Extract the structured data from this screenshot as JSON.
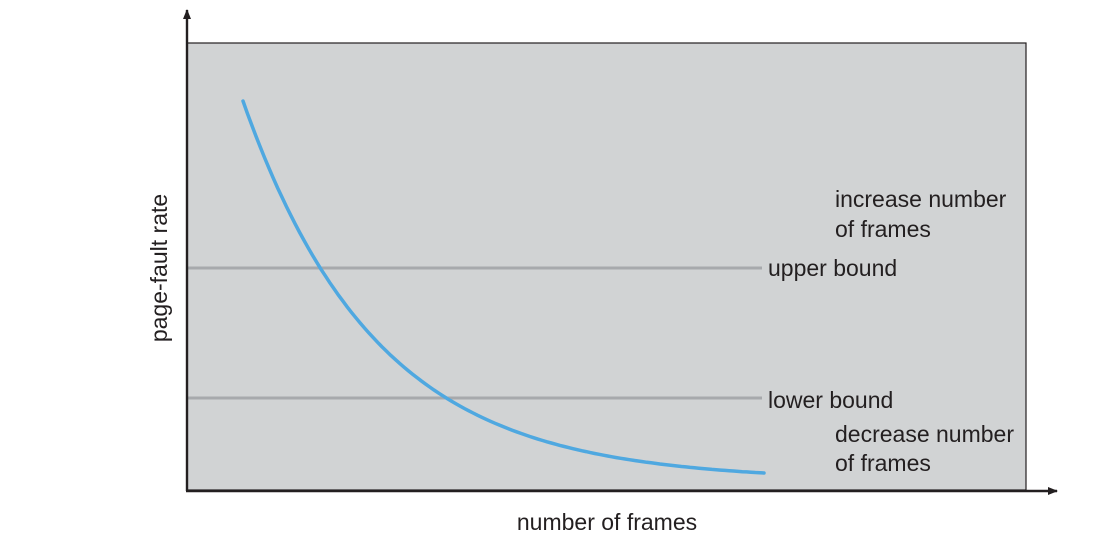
{
  "diagram": {
    "ylabel": "page-fault rate",
    "xlabel": "number of frames",
    "upper_bound_label": "upper bound",
    "lower_bound_label": "lower bound",
    "increase_label": [
      "increase number",
      "of frames"
    ],
    "decrease_label": [
      "decrease number",
      "of frames"
    ],
    "colors": {
      "plot_background": "#d1d3d4",
      "curve": "#4fa8e0",
      "bound_lines": "#a7a9ac",
      "axes": "#231f20",
      "text": "#231f20"
    }
  }
}
